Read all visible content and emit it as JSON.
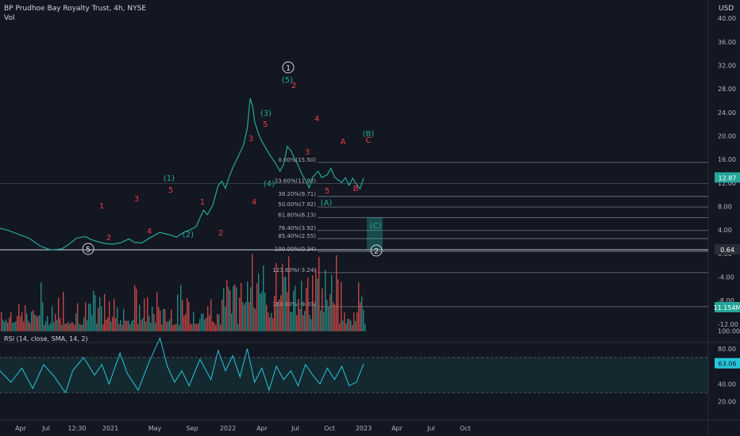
{
  "header": {
    "title": "BP Prudhoe Bay Royalty Trust, 4h, NYSE",
    "volume_label": "Vol",
    "currency": "USD"
  },
  "colors": {
    "background": "#131722",
    "up": "#26a69a",
    "down": "#ef5350",
    "wave_red": "#f23645",
    "wave_teal": "#22ab94",
    "rsi": "#26c6da",
    "fib_line": "#787b86"
  },
  "chart_data": [
    {
      "type": "line",
      "name": "price",
      "title": "BP Prudhoe Bay Royalty Trust, 4h, NYSE",
      "x_tick_labels": [
        "Apr",
        "Jul",
        "12:30",
        "2021",
        "May",
        "Sep",
        "2022",
        "Apr",
        "Jul",
        "Oct",
        "2023",
        "Apr",
        "Jul",
        "Oct"
      ],
      "y_tick_labels": [
        "40.00",
        "36.00",
        "32.00",
        "28.00",
        "24.00",
        "20.00",
        "16.00",
        "12.00",
        "8.00",
        "4.00",
        "0.00",
        "-4.00",
        "-8.00",
        "-12.00"
      ],
      "y_range": [
        -13.5,
        41.5
      ],
      "series": [
        {
          "values": [
            [
              0.0,
              4.3
            ],
            [
              0.02,
              4.0
            ],
            [
              0.05,
              3.3
            ],
            [
              0.08,
              2.6
            ],
            [
              0.11,
              1.3
            ],
            [
              0.14,
              0.6
            ],
            [
              0.17,
              0.8
            ],
            [
              0.19,
              1.6
            ],
            [
              0.21,
              2.6
            ],
            [
              0.235,
              2.9
            ],
            [
              0.25,
              2.4
            ],
            [
              0.27,
              2.0
            ],
            [
              0.29,
              1.7
            ],
            [
              0.31,
              1.6
            ],
            [
              0.33,
              1.8
            ],
            [
              0.355,
              2.5
            ],
            [
              0.37,
              1.9
            ],
            [
              0.39,
              1.8
            ],
            [
              0.41,
              2.6
            ],
            [
              0.44,
              3.6
            ],
            [
              0.465,
              3.2
            ],
            [
              0.485,
              2.8
            ],
            [
              0.505,
              3.6
            ],
            [
              0.525,
              4.1
            ],
            [
              0.54,
              4.6
            ],
            [
              0.55,
              6.1
            ],
            [
              0.56,
              7.4
            ],
            [
              0.57,
              6.6
            ],
            [
              0.585,
              8.2
            ],
            [
              0.6,
              11.6
            ],
            [
              0.61,
              12.3
            ],
            [
              0.62,
              11.1
            ],
            [
              0.63,
              13.0
            ],
            [
              0.64,
              14.6
            ],
            [
              0.655,
              16.5
            ],
            [
              0.67,
              18.5
            ],
            [
              0.68,
              21.3
            ],
            [
              0.688,
              26.4
            ],
            [
              0.695,
              25.0
            ],
            [
              0.7,
              22.5
            ],
            [
              0.71,
              20.5
            ],
            [
              0.72,
              19.1
            ],
            [
              0.73,
              18.0
            ],
            [
              0.745,
              16.5
            ],
            [
              0.76,
              15.1
            ],
            [
              0.77,
              14.0
            ],
            [
              0.78,
              15.2
            ],
            [
              0.79,
              18.2
            ],
            [
              0.8,
              17.5
            ],
            [
              0.81,
              16.2
            ],
            [
              0.82,
              15.0
            ],
            [
              0.83,
              13.5
            ],
            [
              0.84,
              12.5
            ],
            [
              0.85,
              11.2
            ],
            [
              0.86,
              13.0
            ],
            [
              0.875,
              14.0
            ],
            [
              0.885,
              12.9
            ],
            [
              0.9,
              13.4
            ],
            [
              0.91,
              14.5
            ],
            [
              0.92,
              13.0
            ],
            [
              0.93,
              12.5
            ],
            [
              0.94,
              12.1
            ],
            [
              0.95,
              12.9
            ],
            [
              0.96,
              11.6
            ],
            [
              0.97,
              12.8
            ],
            [
              0.98,
              11.8
            ],
            [
              0.99,
              11.0
            ],
            [
              1.0,
              12.87
            ]
          ]
        }
      ],
      "last_price": "12.87",
      "last_volume": "11.154M",
      "level_line_label": "0.64",
      "fib_levels": [
        {
          "label": "0.00%(15.50)",
          "value": 15.5
        },
        {
          "label": "23.60%(11.92)",
          "value": 11.92
        },
        {
          "label": "38.20%(9.71)",
          "value": 9.71
        },
        {
          "label": "50.00%(7.92)",
          "value": 7.92
        },
        {
          "label": "61.80%(6.13)",
          "value": 6.13
        },
        {
          "label": "76.40%(3.92)",
          "value": 3.92
        },
        {
          "label": "85.40%(2.55)",
          "value": 2.55
        },
        {
          "label": "100.00%(0.34)",
          "value": 0.34
        },
        {
          "label": "123.60%(-3.24)",
          "value": -3.24
        },
        {
          "label": "161.80%(-9.03)",
          "value": -9.03
        }
      ],
      "wave_labels": [
        {
          "text": "1",
          "color": "red"
        },
        {
          "text": "2",
          "color": "red"
        },
        {
          "text": "3",
          "color": "red"
        },
        {
          "text": "4",
          "color": "red"
        },
        {
          "text": "5",
          "color": "red"
        },
        {
          "text": "(1)",
          "color": "teal"
        },
        {
          "text": "(2)",
          "color": "teal"
        },
        {
          "text": "1",
          "color": "red"
        },
        {
          "text": "2",
          "color": "red"
        },
        {
          "text": "3",
          "color": "red"
        },
        {
          "text": "4",
          "color": "red"
        },
        {
          "text": "5",
          "color": "red"
        },
        {
          "text": "(3)",
          "color": "teal"
        },
        {
          "text": "(4)",
          "color": "teal"
        },
        {
          "text": "(5)",
          "color": "teal"
        },
        {
          "text": "2",
          "color": "red"
        },
        {
          "text": "3",
          "color": "red"
        },
        {
          "text": "4",
          "color": "red"
        },
        {
          "text": "5",
          "color": "red"
        },
        {
          "text": "(A)",
          "color": "teal"
        },
        {
          "text": "A",
          "color": "red"
        },
        {
          "text": "B",
          "color": "red"
        },
        {
          "text": "C",
          "color": "red"
        },
        {
          "text": "(B)",
          "color": "teal"
        },
        {
          "text": "(C)",
          "color": "teal"
        }
      ],
      "circled_labels": [
        "5",
        "1",
        "2"
      ]
    },
    {
      "type": "line",
      "name": "rsi",
      "title": "RSI (14, close, SMA, 14, 2)",
      "y_tick_labels": [
        "100.00",
        "80.00",
        "60.00",
        "40.00",
        "20.00"
      ],
      "y_range": [
        8,
        105
      ],
      "band": [
        30,
        70
      ],
      "last_value": "63.06",
      "values": [
        [
          0.0,
          55
        ],
        [
          0.03,
          42
        ],
        [
          0.06,
          58
        ],
        [
          0.09,
          35
        ],
        [
          0.12,
          62
        ],
        [
          0.15,
          48
        ],
        [
          0.18,
          30
        ],
        [
          0.2,
          55
        ],
        [
          0.23,
          70
        ],
        [
          0.26,
          50
        ],
        [
          0.28,
          62
        ],
        [
          0.3,
          40
        ],
        [
          0.33,
          75
        ],
        [
          0.35,
          52
        ],
        [
          0.38,
          33
        ],
        [
          0.41,
          65
        ],
        [
          0.44,
          92
        ],
        [
          0.46,
          60
        ],
        [
          0.48,
          42
        ],
        [
          0.5,
          55
        ],
        [
          0.52,
          38
        ],
        [
          0.55,
          68
        ],
        [
          0.58,
          45
        ],
        [
          0.6,
          78
        ],
        [
          0.62,
          55
        ],
        [
          0.64,
          72
        ],
        [
          0.66,
          48
        ],
        [
          0.68,
          80
        ],
        [
          0.7,
          42
        ],
        [
          0.72,
          58
        ],
        [
          0.74,
          33
        ],
        [
          0.76,
          60
        ],
        [
          0.78,
          45
        ],
        [
          0.8,
          55
        ],
        [
          0.82,
          38
        ],
        [
          0.84,
          62
        ],
        [
          0.86,
          50
        ],
        [
          0.88,
          40
        ],
        [
          0.9,
          58
        ],
        [
          0.92,
          45
        ],
        [
          0.94,
          60
        ],
        [
          0.96,
          38
        ],
        [
          0.98,
          42
        ],
        [
          1.0,
          63
        ]
      ]
    }
  ]
}
